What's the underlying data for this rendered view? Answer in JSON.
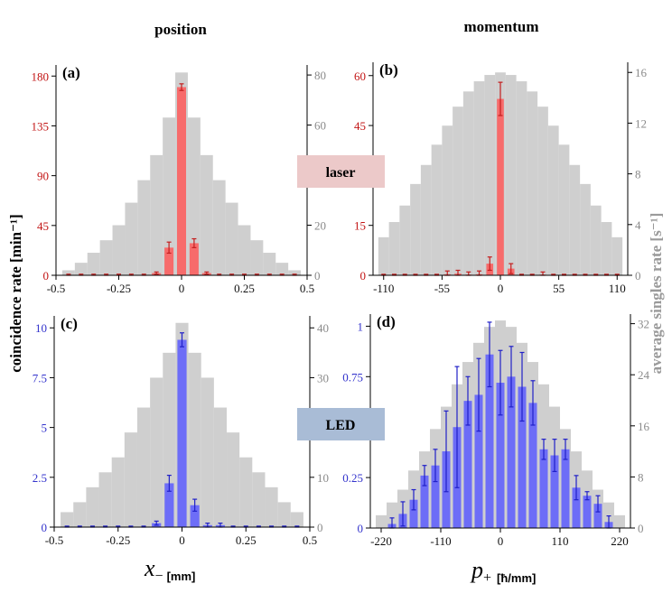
{
  "colors": {
    "singles": "#cfcfcf",
    "laser_bar": "#f76b6b",
    "laser_err": "#c41e1e",
    "laser_tick": "#c21414",
    "led_bar": "#6d6df7",
    "led_err": "#2020c8",
    "led_tick": "#3333cc",
    "right_tick": "#8a8a8a",
    "laser_badge": "#ecc9c9",
    "led_badge": "#a9bcd6"
  },
  "column_titles": {
    "left": "position",
    "right": "momentum"
  },
  "row_badges": {
    "top": "laser",
    "bottom": "LED"
  },
  "ylabel_left": "coincidence rate [min⁻¹]",
  "ylabel_right": "average singles rate [s⁻¹]",
  "xlabel_left": {
    "symbol": "x",
    "subscript": "−",
    "unit": "[mm]"
  },
  "xlabel_right": {
    "symbol": "p",
    "subscript": "+",
    "unit": "[ħ/mm]"
  },
  "chart_data": [
    {
      "id": "a",
      "label": "(a)",
      "type": "bar",
      "xlim": [
        -0.5,
        0.5
      ],
      "xticks": [
        -0.5,
        -0.25,
        0,
        0.25,
        0.5
      ],
      "xtick_labels": [
        "-0.5",
        "-0.25",
        "0",
        "0.25",
        "0.5"
      ],
      "ylim_left": [
        0,
        190
      ],
      "yticks_left": [
        0,
        45,
        90,
        135,
        180
      ],
      "ytick_labels_left": [
        "0",
        "45",
        "90",
        "135",
        "180"
      ],
      "ylim_right": [
        0,
        84
      ],
      "yticks_right": [
        0,
        20,
        40,
        60,
        80
      ],
      "ytick_labels_right": [
        "0",
        "20",
        "40",
        "60",
        "80"
      ],
      "singles": {
        "x": [
          -0.45,
          -0.4,
          -0.35,
          -0.3,
          -0.25,
          -0.2,
          -0.15,
          -0.1,
          -0.05,
          0,
          0.05,
          0.1,
          0.15,
          0.2,
          0.25,
          0.3,
          0.35,
          0.4,
          0.45
        ],
        "values": [
          2,
          5,
          9,
          14,
          20,
          29,
          38,
          48,
          63,
          81,
          63,
          48,
          38,
          29,
          20,
          14,
          9,
          5,
          2
        ]
      },
      "coincidence": {
        "x": [
          -0.45,
          -0.4,
          -0.35,
          -0.3,
          -0.25,
          -0.2,
          -0.15,
          -0.1,
          -0.05,
          0,
          0.05,
          0.1,
          0.15,
          0.2,
          0.25,
          0.3,
          0.35,
          0.4,
          0.45
        ],
        "values": [
          0,
          0,
          0,
          0,
          0,
          0,
          0,
          2,
          25,
          170,
          29,
          2,
          0,
          0,
          0,
          0,
          0,
          0,
          0
        ],
        "errors": [
          1,
          1,
          1,
          1,
          1,
          1,
          1,
          1,
          5,
          3,
          4,
          1,
          1,
          1,
          1,
          1,
          1,
          1,
          1
        ]
      }
    },
    {
      "id": "b",
      "label": "(b)",
      "type": "bar",
      "xlim": [
        -120,
        120
      ],
      "xticks": [
        -110,
        -55,
        0,
        55,
        110
      ],
      "xtick_labels": [
        "-110",
        "-55",
        "0",
        "55",
        "110"
      ],
      "ylim_left": [
        0,
        64
      ],
      "yticks_left": [
        0,
        15,
        30,
        45,
        60
      ],
      "ytick_labels_left": [
        "0",
        "15",
        "",
        "45",
        "60"
      ],
      "ylim_right": [
        0,
        16.8
      ],
      "yticks_right": [
        0,
        4,
        8,
        12,
        16
      ],
      "ytick_labels_right": [
        "0",
        "4",
        "8",
        "12",
        "16"
      ],
      "singles": {
        "x": [
          -110,
          -100,
          -90,
          -80,
          -70,
          -60,
          -50,
          -40,
          -30,
          -20,
          -10,
          0,
          10,
          20,
          30,
          40,
          50,
          60,
          70,
          80,
          90,
          100,
          110
        ],
        "values": [
          3,
          4.2,
          5.5,
          7.2,
          8.7,
          10.3,
          11.8,
          13.3,
          14.5,
          15.3,
          15.8,
          16,
          15.8,
          15.3,
          14.5,
          13.3,
          11.8,
          10.3,
          8.7,
          7.2,
          5.5,
          4.2,
          3
        ]
      },
      "coincidence": {
        "x": [
          -110,
          -100,
          -90,
          -80,
          -70,
          -60,
          -50,
          -40,
          -30,
          -20,
          -10,
          0,
          10,
          20,
          30,
          40,
          50,
          60,
          70,
          80,
          90,
          100,
          110
        ],
        "values": [
          0,
          0,
          0,
          0,
          0,
          0,
          0.3,
          0.5,
          0.2,
          0.3,
          3.5,
          53,
          2,
          0,
          0,
          0.2,
          0,
          0,
          0,
          0,
          0,
          0,
          0
        ],
        "errors": [
          0.3,
          0.3,
          0.3,
          0.3,
          0.3,
          0.3,
          1,
          1,
          0.8,
          1,
          2,
          5,
          1.5,
          0.3,
          0.3,
          0.8,
          0.3,
          0.3,
          0.3,
          0.3,
          0.3,
          0.3,
          0.3
        ]
      }
    },
    {
      "id": "c",
      "label": "(c)",
      "type": "bar",
      "xlim": [
        -0.5,
        0.5
      ],
      "xticks": [
        -0.5,
        -0.25,
        0,
        0.25,
        0.5
      ],
      "xtick_labels": [
        "-0.5",
        "-0.25",
        "0",
        "0.25",
        "0.5"
      ],
      "ylim_left": [
        0,
        10.6
      ],
      "yticks_left": [
        0,
        2.5,
        5,
        7.5,
        10
      ],
      "ytick_labels_left": [
        "0",
        "2.5",
        "5",
        "7.5",
        "10"
      ],
      "ylim_right": [
        0,
        42.4
      ],
      "yticks_right": [
        0,
        10,
        20,
        30,
        40
      ],
      "ytick_labels_right": [
        "0",
        "10",
        "",
        "30",
        "40"
      ],
      "singles": {
        "x": [
          -0.45,
          -0.4,
          -0.35,
          -0.3,
          -0.25,
          -0.2,
          -0.15,
          -0.1,
          -0.05,
          0,
          0.05,
          0.1,
          0.15,
          0.2,
          0.25,
          0.3,
          0.35,
          0.4,
          0.45
        ],
        "values": [
          3,
          5,
          8,
          11,
          14,
          19,
          24,
          30,
          35,
          41,
          35,
          30,
          24,
          19,
          14,
          11,
          8,
          5,
          3
        ]
      },
      "coincidence": {
        "x": [
          -0.45,
          -0.4,
          -0.35,
          -0.3,
          -0.25,
          -0.2,
          -0.15,
          -0.1,
          -0.05,
          0,
          0.05,
          0.1,
          0.15,
          0.2,
          0.25,
          0.3,
          0.35,
          0.4,
          0.45
        ],
        "values": [
          0,
          0,
          0,
          0,
          0,
          0,
          0,
          0.2,
          2.2,
          9.4,
          1.1,
          0.1,
          0.1,
          0,
          0,
          0,
          0,
          0,
          0
        ],
        "errors": [
          0.05,
          0.05,
          0.05,
          0.05,
          0.05,
          0.05,
          0.05,
          0.1,
          0.4,
          0.35,
          0.3,
          0.1,
          0.1,
          0.05,
          0.05,
          0.05,
          0.05,
          0.05,
          0.05
        ]
      }
    },
    {
      "id": "d",
      "label": "(d)",
      "type": "bar",
      "xlim": [
        -240,
        240
      ],
      "xticks": [
        -220,
        -110,
        0,
        110,
        220
      ],
      "xtick_labels": [
        "-220",
        "-110",
        "0",
        "110",
        "220"
      ],
      "ylim_left": [
        0,
        1.06
      ],
      "yticks_left": [
        0,
        0.25,
        0.75,
        1
      ],
      "ytick_labels_left": [
        "0",
        "0.25",
        "0.75",
        "1"
      ],
      "ylim_right": [
        0,
        33.5
      ],
      "yticks_right": [
        0,
        8,
        16,
        24,
        32
      ],
      "ytick_labels_right": [
        "0",
        "8",
        "16",
        "24",
        "32"
      ],
      "singles": {
        "x": [
          -220,
          -200,
          -180,
          -160,
          -140,
          -120,
          -100,
          -80,
          -60,
          -40,
          -20,
          0,
          20,
          40,
          60,
          80,
          100,
          120,
          140,
          160,
          180,
          200,
          220
        ],
        "values": [
          2,
          4,
          6,
          9,
          12,
          15.5,
          19,
          22.5,
          26,
          29,
          31.5,
          32.5,
          31.5,
          29,
          26,
          22.5,
          19,
          15.5,
          12,
          9,
          6,
          4,
          2
        ]
      },
      "coincidence": {
        "x": [
          -200,
          -180,
          -160,
          -140,
          -120,
          -100,
          -80,
          -60,
          -40,
          -20,
          0,
          20,
          40,
          60,
          80,
          100,
          120,
          140,
          160,
          180,
          200
        ],
        "values": [
          0.02,
          0.07,
          0.14,
          0.26,
          0.31,
          0.38,
          0.5,
          0.63,
          0.66,
          0.86,
          0.72,
          0.75,
          0.7,
          0.62,
          0.39,
          0.36,
          0.39,
          0.2,
          0.16,
          0.12,
          0.03
        ],
        "errors": [
          0.03,
          0.06,
          0.05,
          0.05,
          0.08,
          0.2,
          0.3,
          0.12,
          0.18,
          0.16,
          0.16,
          0.15,
          0.17,
          0.11,
          0.05,
          0.08,
          0.05,
          0.06,
          0.02,
          0.04,
          0.03
        ]
      }
    }
  ]
}
